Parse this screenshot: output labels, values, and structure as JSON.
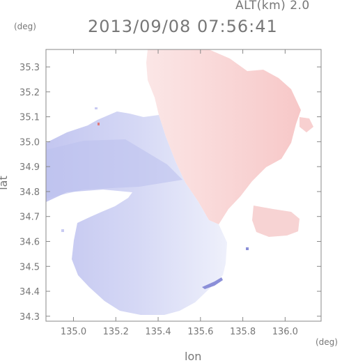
{
  "header": {
    "altitude": "ALT(km) 2.0",
    "datetime": "2013/09/08 07:56:41",
    "y_unit": "(deg)",
    "x_unit": "(deg)"
  },
  "axes": {
    "xlabel": "lon",
    "ylabel": "lat",
    "xlim": [
      134.87,
      136.17
    ],
    "ylim": [
      34.28,
      35.37
    ],
    "x_ticks": [
      "135.0",
      "135.2",
      "135.4",
      "135.6",
      "135.8",
      "136.0"
    ],
    "y_ticks": [
      "35.3",
      "35.2",
      "35.1",
      "35.0",
      "34.9",
      "34.8",
      "34.7",
      "34.6",
      "34.5",
      "34.4",
      "34.3"
    ]
  },
  "colors": {
    "receding": "#f6c9c9",
    "approaching": "#c9cbf2",
    "axis": "#888888"
  }
}
